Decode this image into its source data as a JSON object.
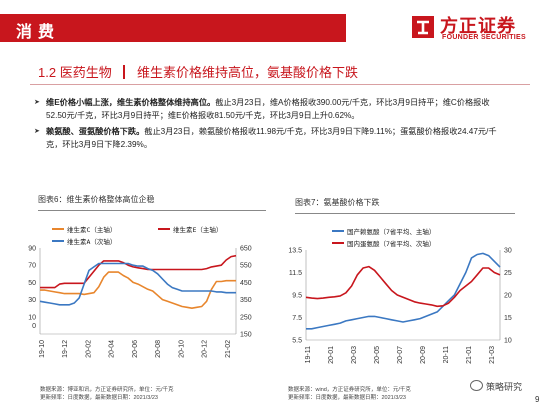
{
  "header": {
    "title": "消费",
    "logo_cn": "方正证券",
    "logo_en": "FOUNDER SECURITIES"
  },
  "section": {
    "number": "1.2",
    "name": "医药生物",
    "subtitle": "维生素价格维持高位，氨基酸价格下跌"
  },
  "bullets": [
    {
      "lead": "维E价格小幅上涨，维生素价格整体维持高位。",
      "text": "截止3月23日，维A价格报收390.00元/千克，环比3月9日持平；维C价格报收52.50元/千克，环比3月9日持平；维E价格报收81.50元/千克，环比3月9日上升0.62%。"
    },
    {
      "lead": "赖氨酸、蛋氨酸价格下跌。",
      "text": "截止3月23日，赖氨酸价格报收11.98元/千克，环比3月9日下降9.11%；蛋氨酸价格报收24.47元/千克，环比3月9日下降2.39%。"
    }
  ],
  "figures": {
    "fig6_title": "图表6：维生素价格整体高位企稳",
    "fig7_title": "图表7：氨基酸价格下跌"
  },
  "colors": {
    "brand_red": "#c8161d",
    "vit_c": "#e8862d",
    "vit_e": "#c8161d",
    "vit_a": "#3b78c2",
    "lysine": "#3b78c2",
    "methionine": "#c8161d"
  },
  "chart_data": [
    {
      "type": "line",
      "title": "图表6：维生素价格整体高位企稳",
      "x_ticks": [
        "19-10",
        "19-12",
        "20-02",
        "20-04",
        "20-06",
        "20-08",
        "20-10",
        "20-12",
        "21-02"
      ],
      "y_left": {
        "ticks": [
          0,
          10,
          30,
          50,
          70,
          90
        ],
        "range": [
          -10,
          90
        ]
      },
      "y_right": {
        "ticks": [
          150,
          250,
          350,
          450,
          550,
          650
        ],
        "range": [
          150,
          650
        ]
      },
      "legend": [
        "维生素C（主轴）",
        "维生素E（主轴）",
        "维生素A（次轴）"
      ],
      "series": [
        {
          "name": "维生素C（主轴）",
          "axis": "left",
          "values": [
            41,
            41,
            40,
            39,
            38,
            37,
            37,
            37,
            37,
            36,
            37,
            38,
            45,
            56,
            62,
            62,
            62,
            58,
            55,
            50,
            48,
            45,
            42,
            40,
            35,
            30,
            28,
            26,
            24,
            22,
            21,
            20,
            21,
            22,
            28,
            42,
            51,
            51,
            52,
            52,
            52
          ]
        },
        {
          "name": "维生素E（主轴）",
          "axis": "left",
          "values": [
            44,
            44,
            44,
            44,
            48,
            49,
            49,
            49,
            49,
            49,
            56,
            63,
            70,
            75,
            75,
            75,
            75,
            73,
            70,
            68,
            67,
            66,
            65,
            65,
            65,
            65,
            65,
            65,
            65,
            65,
            65,
            65,
            65,
            65,
            66,
            68,
            69,
            70,
            76,
            80,
            81
          ]
        },
        {
          "name": "维生素A（次轴）",
          "axis": "right",
          "values": [
            340,
            335,
            330,
            325,
            320,
            320,
            320,
            330,
            360,
            440,
            520,
            540,
            560,
            560,
            560,
            560,
            560,
            560,
            560,
            550,
            545,
            545,
            530,
            520,
            500,
            470,
            440,
            420,
            410,
            400,
            400,
            400,
            400,
            400,
            400,
            400,
            395,
            395,
            390,
            390,
            390
          ]
        }
      ]
    },
    {
      "type": "line",
      "title": "图表7：氨基酸价格下跌",
      "x_ticks": [
        "19-11",
        "20-01",
        "20-03",
        "20-05",
        "20-07",
        "20-09",
        "20-11",
        "21-01",
        "21-03"
      ],
      "y_left": {
        "ticks": [
          5.5,
          7.5,
          9.5,
          11.5,
          13.5
        ],
        "range": [
          5.5,
          13.5
        ]
      },
      "y_right": {
        "ticks": [
          10,
          15,
          20,
          25,
          30
        ],
        "range": [
          10,
          30
        ]
      },
      "legend": [
        "国产赖氨酸（7省平均、主轴）",
        "国内蛋氨酸（7省平均、次轴）"
      ],
      "series": [
        {
          "name": "国产赖氨酸（7省平均、主轴）",
          "axis": "left",
          "values": [
            6.5,
            6.5,
            6.6,
            6.7,
            6.8,
            6.9,
            7.0,
            7.2,
            7.3,
            7.4,
            7.5,
            7.6,
            7.6,
            7.5,
            7.4,
            7.3,
            7.2,
            7.1,
            7.2,
            7.3,
            7.4,
            7.6,
            7.8,
            8.0,
            8.5,
            9.0,
            9.5,
            10.5,
            11.5,
            12.8,
            13.1,
            13.2,
            13.0,
            12.5,
            11.98
          ]
        },
        {
          "name": "国内蛋氨酸（7省平均、次轴）",
          "axis": "right",
          "values": [
            19.5,
            19.3,
            19.2,
            19.3,
            19.5,
            19.6,
            19.8,
            20.5,
            22.0,
            24.5,
            26.0,
            26.3,
            25.5,
            24.0,
            22.5,
            21.0,
            20.0,
            19.5,
            19.0,
            18.5,
            18.2,
            18.0,
            17.8,
            17.5,
            17.6,
            18.2,
            19.5,
            21.0,
            22.0,
            23.0,
            24.5,
            26.0,
            26.0,
            25.0,
            24.47
          ]
        }
      ]
    }
  ],
  "footer": {
    "left_line1": "数据来源：博亚和讯，方正证券研究所，单位：元/千克",
    "left_line2": "更新频率：日度数据，最新数据日期：2021/3/23",
    "right_line1": "数据来源：wind，方正证券研究所，单位：元/千克",
    "right_line2": "更新频率：日度数据，最新数据日期：2021/3/23",
    "wechat": "策略研究",
    "page": "9"
  }
}
